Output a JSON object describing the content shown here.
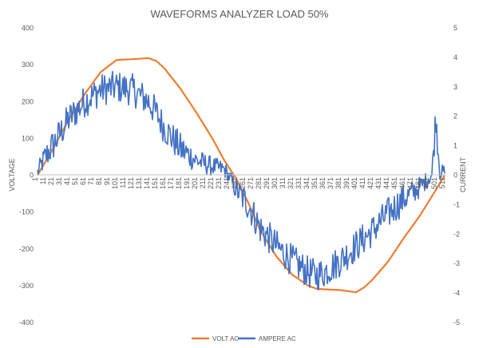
{
  "chart_data": {
    "type": "line",
    "title": "WAVEFORMS ANALYZER LOAD 50%",
    "ylabel": "VOLTAGE",
    "y2label": "CURRENT",
    "xlabel": "",
    "xlim": [
      1,
      511
    ],
    "ylim": [
      -400,
      400
    ],
    "y2lim": [
      -5,
      5
    ],
    "yticks": [
      -400,
      -300,
      -200,
      -100,
      0,
      100,
      200,
      300,
      400
    ],
    "y2ticks": [
      -5,
      -4,
      -3,
      -2,
      -1,
      0,
      1,
      2,
      3,
      4,
      5
    ],
    "xtick_start": 1,
    "xtick_step": 10,
    "xtick_count": 52,
    "grid": false,
    "legend": "bottom",
    "series": [
      {
        "name": "VOLT AC",
        "axis": "left",
        "color": "#ED7D31",
        "x": [
          1,
          20,
          40,
          60,
          80,
          100,
          120,
          140,
          150,
          160,
          180,
          200,
          220,
          235,
          250,
          265,
          280,
          300,
          320,
          340,
          350,
          360,
          380,
          400,
          410,
          420,
          440,
          460,
          480,
          500,
          511
        ],
        "values": [
          0,
          70,
          150,
          220,
          280,
          313,
          315,
          318,
          310,
          290,
          235,
          170,
          100,
          40,
          -10,
          -75,
          -150,
          -220,
          -270,
          -300,
          -308,
          -310,
          -312,
          -318,
          -305,
          -285,
          -235,
          -170,
          -110,
          -40,
          0
        ]
      },
      {
        "name": "AMPERE AC",
        "axis": "right",
        "color": "#4472C4",
        "noise": 0.55,
        "x": [
          1,
          10,
          20,
          40,
          60,
          80,
          100,
          120,
          140,
          150,
          160,
          180,
          200,
          220,
          235,
          240,
          250,
          265,
          280,
          300,
          320,
          340,
          350,
          360,
          380,
          400,
          420,
          440,
          460,
          480,
          495,
          500,
          505,
          511
        ],
        "values": [
          0.1,
          0.6,
          1.0,
          1.9,
          2.5,
          2.9,
          3.0,
          2.9,
          2.5,
          2.1,
          1.6,
          0.9,
          0.5,
          0.3,
          0.2,
          0.0,
          -0.5,
          -1.0,
          -1.8,
          -2.4,
          -2.9,
          -3.3,
          -3.4,
          -3.3,
          -2.9,
          -2.4,
          -1.9,
          -1.3,
          -0.8,
          -0.4,
          0.0,
          2.0,
          0.1,
          0.1
        ]
      }
    ]
  }
}
